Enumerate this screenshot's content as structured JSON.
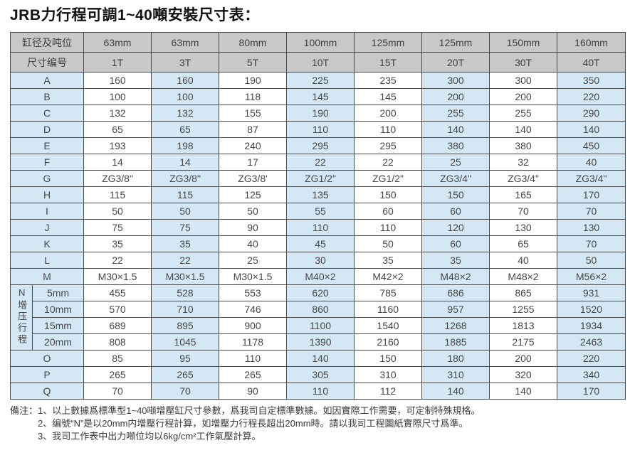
{
  "title": "JRB力行程可調1~40噸安裝尺寸表：",
  "table": {
    "header_row1_label": "缸径及吨位",
    "header_row2_label": "尺寸编号",
    "diameters": [
      "63mm",
      "63mm",
      "80mm",
      "100mm",
      "125mm",
      "125mm",
      "150mm",
      "160mm"
    ],
    "tonnages": [
      "1T",
      "3T",
      "5T",
      "10T",
      "15T",
      "20T",
      "30T",
      "40T"
    ],
    "rows": [
      {
        "label": "A",
        "values": [
          "160",
          "160",
          "190",
          "225",
          "235",
          "300",
          "300",
          "350"
        ]
      },
      {
        "label": "B",
        "values": [
          "100",
          "100",
          "118",
          "145",
          "145",
          "200",
          "200",
          "220"
        ]
      },
      {
        "label": "C",
        "values": [
          "132",
          "132",
          "155",
          "190",
          "200",
          "255",
          "255",
          "290"
        ]
      },
      {
        "label": "D",
        "values": [
          "65",
          "65",
          "87",
          "110",
          "110",
          "140",
          "140",
          "140"
        ]
      },
      {
        "label": "E",
        "values": [
          "193",
          "198",
          "240",
          "295",
          "295",
          "380",
          "380",
          "450"
        ]
      },
      {
        "label": "F",
        "values": [
          "14",
          "14",
          "17",
          "22",
          "22",
          "25",
          "32",
          "40"
        ]
      },
      {
        "label": "G",
        "values": [
          "ZG3/8\"",
          "ZG3/8\"",
          "ZG3/8'",
          "ZG1/2\"",
          "ZG1/2\"",
          "ZG3/4\"",
          "ZG3/4\"",
          "ZG3/4\""
        ]
      },
      {
        "label": "H",
        "values": [
          "115",
          "115",
          "125",
          "135",
          "150",
          "150",
          "165",
          "170"
        ]
      },
      {
        "label": "I",
        "values": [
          "50",
          "50",
          "50",
          "55",
          "60",
          "60",
          "70",
          "70"
        ]
      },
      {
        "label": "J",
        "values": [
          "75",
          "75",
          "90",
          "110",
          "110",
          "120",
          "130",
          "130"
        ]
      },
      {
        "label": "K",
        "values": [
          "35",
          "35",
          "40",
          "45",
          "50",
          "60",
          "65",
          "70"
        ]
      },
      {
        "label": "L",
        "values": [
          "22",
          "22",
          "25",
          "30",
          "35",
          "35",
          "40",
          "50"
        ]
      },
      {
        "label": "M",
        "values": [
          "M30×1.5",
          "M30×1.5",
          "M30×1.5",
          "M40×2",
          "M42×2",
          "M48×2",
          "M48×2",
          "M56×2"
        ]
      }
    ],
    "n_section": {
      "group_label": "N增压行程",
      "rows": [
        {
          "label": "5mm",
          "values": [
            "455",
            "528",
            "553",
            "620",
            "785",
            "686",
            "865",
            "931"
          ]
        },
        {
          "label": "10mm",
          "values": [
            "570",
            "710",
            "746",
            "860",
            "1160",
            "957",
            "1255",
            "1520"
          ]
        },
        {
          "label": "15mm",
          "values": [
            "689",
            "895",
            "900",
            "1100",
            "1540",
            "1268",
            "1813",
            "1934"
          ]
        },
        {
          "label": "20mm",
          "values": [
            "808",
            "1045",
            "1178",
            "1390",
            "2160",
            "1885",
            "2175",
            "2463"
          ]
        }
      ]
    },
    "tail_rows": [
      {
        "label": "O",
        "values": [
          "85",
          "95",
          "110",
          "140",
          "150",
          "180",
          "200",
          "220"
        ]
      },
      {
        "label": "P",
        "values": [
          "265",
          "265",
          "265",
          "305",
          "310",
          "310",
          "320",
          "340"
        ]
      },
      {
        "label": "Q",
        "values": [
          "70",
          "70",
          "90",
          "110",
          "112",
          "140",
          "140",
          "170"
        ]
      }
    ]
  },
  "notes": {
    "prefix": "備注：",
    "items": [
      "1、以上數據爲標準型1~40噸增壓缸尺寸參數，爲我司自定標準數據。如因實際工作需要，可定制特殊規格。",
      "2、编號“N”是以20mm内增壓行程計算，如增壓力行程長超出20mm時。請以我司工程圖紙實際尺寸爲準。",
      "3、我司工作表中出力噸位均以6kg/cm²工作氣壓計算。"
    ]
  },
  "colors": {
    "header_bg": "#c8c8c8",
    "alt_column_bg": "#d3e7f4",
    "white_bg": "#ffffff",
    "border": "#4a4a4a",
    "text": "#474747"
  }
}
